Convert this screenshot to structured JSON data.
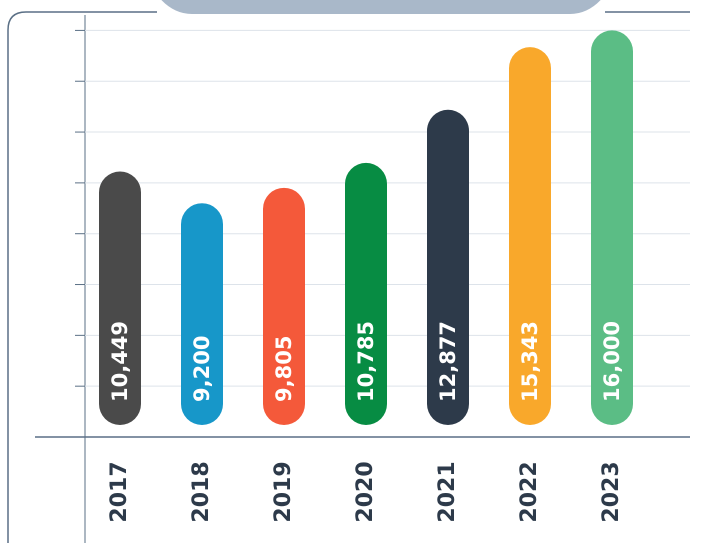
{
  "chart_data": {
    "type": "bar",
    "categories": [
      "2017",
      "2018",
      "2019",
      "2020",
      "2021",
      "2022",
      "2023"
    ],
    "values": [
      10449,
      9200,
      9805,
      10785,
      12877,
      15343,
      16000
    ],
    "value_labels": [
      "10,449",
      "9,200",
      "9,805",
      "10,785",
      "12,877",
      "15,343",
      "16,000"
    ],
    "colors": [
      "#4a4a4a",
      "#1797c9",
      "#f4593a",
      "#078c43",
      "#2d3a4a",
      "#f9a82b",
      "#5bbd85"
    ],
    "ylim": [
      0,
      17000
    ],
    "yticks": [
      0,
      2000,
      4000,
      6000,
      8000,
      10000,
      12000,
      14000,
      16000
    ],
    "grid": true
  }
}
